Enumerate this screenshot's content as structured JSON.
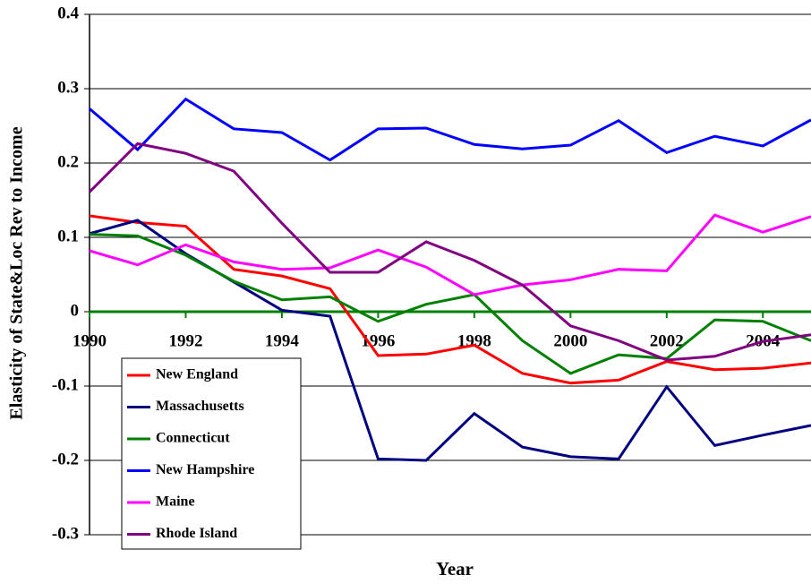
{
  "chart_data": {
    "type": "line",
    "x_label": "Year",
    "y_label": "Elasticity of State&Loc Rev to Income",
    "x": [
      1990,
      1991,
      1992,
      1993,
      1994,
      1995,
      1996,
      1997,
      1998,
      1999,
      2000,
      2001,
      2002,
      2003,
      2004,
      2005
    ],
    "xlim": [
      1990,
      2005
    ],
    "xticks": [
      1990,
      1992,
      1994,
      1996,
      1998,
      2000,
      2002,
      2004
    ],
    "ylim": [
      -0.3,
      0.4
    ],
    "yticks": [
      -0.3,
      -0.2,
      -0.1,
      0,
      0.1,
      0.2,
      0.3,
      0.4
    ],
    "grid": true,
    "legend": "lower left",
    "series": [
      {
        "name": "New England",
        "color": "#ff0000",
        "values": [
          0.129,
          0.12,
          0.115,
          0.057,
          0.048,
          0.031,
          -0.059,
          -0.057,
          -0.045,
          -0.083,
          -0.096,
          -0.092,
          -0.067,
          -0.078,
          -0.076,
          -0.069
        ]
      },
      {
        "name": "Massachusetts",
        "color": "#000080",
        "values": [
          0.105,
          0.123,
          0.078,
          0.04,
          0.002,
          -0.006,
          -0.198,
          -0.2,
          -0.137,
          -0.182,
          -0.195,
          -0.198,
          -0.101,
          -0.18,
          -0.166,
          -0.153
        ]
      },
      {
        "name": "Connecticut",
        "color": "#008000",
        "values": [
          0.104,
          0.102,
          0.076,
          0.041,
          0.016,
          0.02,
          -0.013,
          0.01,
          0.023,
          -0.039,
          -0.083,
          -0.058,
          -0.063,
          -0.011,
          -0.013,
          -0.039
        ]
      },
      {
        "name": "New Hampshire",
        "color": "#0000ff",
        "values": [
          0.273,
          0.218,
          0.286,
          0.246,
          0.241,
          0.204,
          0.246,
          0.247,
          0.225,
          0.219,
          0.224,
          0.257,
          0.214,
          0.236,
          0.223,
          0.258
        ]
      },
      {
        "name": "Maine",
        "color": "#ff00ff",
        "values": [
          0.082,
          0.063,
          0.09,
          0.067,
          0.057,
          0.059,
          0.083,
          0.06,
          0.023,
          0.036,
          0.043,
          0.057,
          0.055,
          0.13,
          0.107,
          0.128
        ]
      },
      {
        "name": "Rhode Island",
        "color": "#800080",
        "values": [
          0.161,
          0.226,
          0.213,
          0.189,
          0.119,
          0.053,
          0.053,
          0.094,
          0.069,
          0.036,
          -0.019,
          -0.039,
          -0.065,
          -0.06,
          -0.04,
          -0.031
        ]
      }
    ]
  }
}
